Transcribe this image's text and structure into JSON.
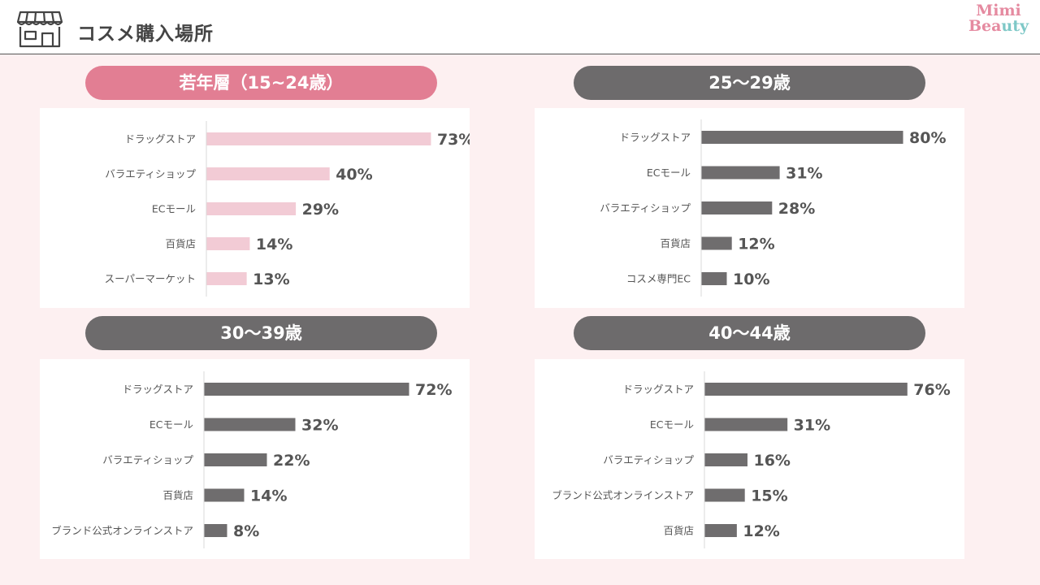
{
  "header": {
    "title": "コスメ購入場所"
  },
  "logo": {
    "line1": "Mimi",
    "line2_a": "Bea",
    "line2_b": "uty"
  },
  "colors": {
    "pink_bar": "#f2cbd5",
    "gray_bar": "#6f6d6e",
    "pink_pill": "#e27e93",
    "gray_pill": "#6d6b6c",
    "background": "#fdf0f1"
  },
  "icons": {
    "header": "store-icon"
  },
  "chart_data": [
    {
      "type": "bar",
      "orientation": "horizontal",
      "title": "若年層（15~24歳）",
      "categories": [
        "ドラッグストア",
        "バラエティショップ",
        "ECモール",
        "百貨店",
        "スーパーマーケット"
      ],
      "values": [
        73,
        40,
        29,
        14,
        13
      ],
      "value_labels": [
        "73%",
        "40%",
        "29%",
        "14%",
        "13%"
      ],
      "unit": "%",
      "color": "#f2cbd5"
    },
    {
      "type": "bar",
      "orientation": "horizontal",
      "title": "25〜29歳",
      "categories": [
        "ドラッグストア",
        "ECモール",
        "バラエティショップ",
        "百貨店",
        "コスメ専門EC"
      ],
      "values": [
        80,
        31,
        28,
        12,
        10
      ],
      "value_labels": [
        "80%",
        "31%",
        "28%",
        "12%",
        "10%"
      ],
      "unit": "%",
      "color": "#6f6d6e"
    },
    {
      "type": "bar",
      "orientation": "horizontal",
      "title": "30〜39歳",
      "categories": [
        "ドラッグストア",
        "ECモール",
        "バラエティショップ",
        "百貨店",
        "ブランド公式オンラインストア"
      ],
      "values": [
        72,
        32,
        22,
        14,
        8
      ],
      "value_labels": [
        "72%",
        "32%",
        "22%",
        "14%",
        "8%"
      ],
      "unit": "%",
      "color": "#6f6d6e"
    },
    {
      "type": "bar",
      "orientation": "horizontal",
      "title": "40〜44歳",
      "categories": [
        "ドラッグストア",
        "ECモール",
        "バラエティショップ",
        "ブランド公式オンラインストア",
        "百貨店"
      ],
      "values": [
        76,
        31,
        16,
        15,
        12
      ],
      "value_labels": [
        "76%",
        "31%",
        "16%",
        "15%",
        "12%"
      ],
      "unit": "%",
      "color": "#6f6d6e"
    }
  ]
}
